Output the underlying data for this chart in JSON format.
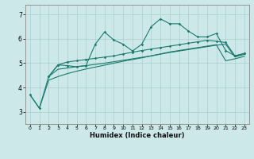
{
  "xlabel": "Humidex (Indice chaleur)",
  "background_color": "#cce8e8",
  "line_color": "#1a7a6e",
  "grid_color": "#aacfcf",
  "spine_color": "#888888",
  "x_ticks": [
    0,
    1,
    2,
    3,
    4,
    5,
    6,
    7,
    8,
    9,
    10,
    11,
    12,
    13,
    14,
    15,
    16,
    17,
    18,
    19,
    20,
    21,
    22,
    23
  ],
  "y_ticks": [
    3,
    4,
    5,
    6,
    7
  ],
  "ylim": [
    2.5,
    7.4
  ],
  "xlim": [
    -0.5,
    23.5
  ],
  "s1_x": [
    0,
    1,
    2,
    3,
    4,
    5,
    6,
    7,
    8,
    9,
    10,
    11,
    12,
    13,
    14,
    15,
    16,
    17,
    18,
    19,
    20,
    21,
    22,
    23
  ],
  "s1_y": [
    3.7,
    3.15,
    4.45,
    4.93,
    4.9,
    4.85,
    4.9,
    5.78,
    6.28,
    5.95,
    5.78,
    5.5,
    5.78,
    6.5,
    6.82,
    6.62,
    6.62,
    6.32,
    6.08,
    6.08,
    6.22,
    5.52,
    5.3,
    5.4
  ],
  "s2_x": [
    2,
    3,
    4,
    5,
    6,
    7,
    8,
    9,
    10,
    11,
    12,
    13,
    14,
    15,
    16,
    17,
    18,
    19,
    20,
    21,
    22,
    23
  ],
  "s2_y": [
    4.45,
    4.93,
    5.05,
    5.1,
    5.15,
    5.2,
    5.25,
    5.3,
    5.38,
    5.45,
    5.52,
    5.58,
    5.64,
    5.7,
    5.76,
    5.82,
    5.88,
    5.94,
    5.9,
    5.85,
    5.3,
    5.4
  ],
  "s3_x": [
    2,
    3,
    4,
    5,
    6,
    7,
    8,
    9,
    10,
    11,
    12,
    13,
    14,
    15,
    16,
    17,
    18,
    19,
    20,
    21,
    22,
    23
  ],
  "s3_y": [
    4.45,
    4.75,
    4.8,
    4.86,
    4.9,
    4.95,
    5.0,
    5.06,
    5.12,
    5.18,
    5.24,
    5.3,
    5.37,
    5.44,
    5.5,
    5.56,
    5.62,
    5.68,
    5.74,
    5.78,
    5.26,
    5.36
  ],
  "s4_x": [
    0,
    1,
    2,
    3,
    4,
    5,
    6,
    7,
    8,
    9,
    10,
    11,
    12,
    13,
    14,
    15,
    16,
    17,
    18,
    19,
    20,
    21,
    22,
    23
  ],
  "s4_y": [
    3.7,
    3.15,
    4.3,
    4.45,
    4.57,
    4.67,
    4.76,
    4.84,
    4.92,
    5.0,
    5.08,
    5.15,
    5.22,
    5.3,
    5.38,
    5.46,
    5.52,
    5.58,
    5.64,
    5.7,
    5.76,
    5.1,
    5.18,
    5.28
  ]
}
